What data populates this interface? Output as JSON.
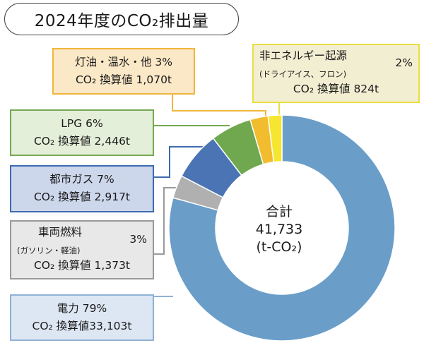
{
  "title": "2024年度のCO₂排出量",
  "center": {
    "line1": "合計",
    "line2": "41,733",
    "line3": "(t-CO₂)"
  },
  "chart_data": {
    "type": "pie",
    "donut": true,
    "title": "2024年度のCO₂排出量",
    "total": 41733,
    "total_unit": "t-CO₂",
    "slices": [
      {
        "key": "electricity",
        "name": "電力",
        "percent": 79,
        "value": 33103,
        "color": "#6a9ec9"
      },
      {
        "key": "vehicle",
        "name": "車両燃料",
        "sub": "(ガソリン・軽油)",
        "percent": 3,
        "value": 1373,
        "color": "#b0b0b0"
      },
      {
        "key": "gas",
        "name": "都市ガス",
        "percent": 7,
        "value": 2917,
        "color": "#4a74b4"
      },
      {
        "key": "lpg",
        "name": "LPG",
        "percent": 6,
        "value": 2446,
        "color": "#6fa84e"
      },
      {
        "key": "oil",
        "name": "灯油・温水・他",
        "percent": 3,
        "value": 1070,
        "color": "#f1bc2d"
      },
      {
        "key": "nonenergy",
        "name": "非エネルギー起源",
        "sub": "(ドライアイス、フロン)",
        "percent": 2,
        "value": 824,
        "color": "#f7e630"
      }
    ]
  },
  "labels": {
    "nonenergy": {
      "line1": "非エネルギー起源",
      "sub": "(ドライアイス、フロン)",
      "pct": "2%",
      "line3": "CO₂ 換算値 824t",
      "bg": "#f2eed2",
      "border": "#e9df42"
    },
    "oil": {
      "line1": "灯油・温水・他 3%",
      "line2": "CO₂ 換算値 1,070t",
      "bg": "#fbe8c7",
      "border": "#f0b63b"
    },
    "lpg": {
      "line1": "LPG 6%",
      "line2": "CO₂ 換算値 2,446t",
      "bg": "#e4efd9",
      "border": "#75a854"
    },
    "gas": {
      "line1": "都市ガス 7%",
      "line2": "CO₂ 換算値 2,917t",
      "bg": "#cdd7ec",
      "border": "#3f6bb0"
    },
    "vehicle": {
      "line1": "車両燃料",
      "sub": "(ガソリン・軽油)",
      "pct": "3%",
      "line3": "CO₂ 換算値 1,373t",
      "bg": "#e8e8e8",
      "border": "#9a9a9a"
    },
    "electricity": {
      "line1": "電力 79%",
      "line2": "CO₂ 換算値33,103t",
      "bg": "#dde7f3",
      "border": "#8eb3d6"
    }
  }
}
